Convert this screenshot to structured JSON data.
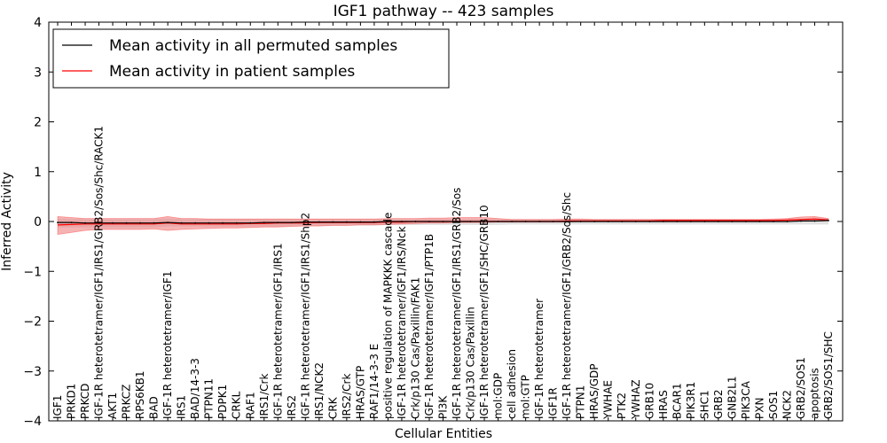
{
  "chart_data": {
    "type": "line",
    "title": "IGF1 pathway -- 423 samples",
    "xlabel": "Cellular Entities",
    "ylabel": "Inferred Activity",
    "ylim": [
      -4,
      4
    ],
    "yticks": [
      "−4",
      "−3",
      "−2",
      "−1",
      "0",
      "1",
      "2",
      "3",
      "4"
    ],
    "grid": false,
    "legend_position": "top-left",
    "colors": {
      "permuted": "#000000",
      "patient": "#ff0000",
      "patient_band": "#f08080",
      "permuted_band": "#c8c8c8"
    },
    "categories": [
      "IGF1",
      "PRKD1",
      "PRKCD",
      "IGF-1R heterotetramer/IGF1/IRS1/GRB2/Sos/Shc/RACK1",
      "AKT1",
      "PRKCZ",
      "RPS6KB1",
      "BAD",
      "IGF-1R heterotetramer/IGF1",
      "IRS1",
      "BAD/14-3-3",
      "PTPN11",
      "PDPK1",
      "CRKL",
      "RAF1",
      "IRS1/Crk",
      "IGF-1R heterotetramer/IGF1/IRS1",
      "IRS2",
      "IGF-1R heterotetramer/IGF1/IRS1/Shp2",
      "IRS1/NCK2",
      "CRK",
      "IRS2/Crk",
      "HRAS/GTP",
      "RAF1/14-3-3 E",
      "positive regulation of MAPKKK cascade",
      "IGF-1R heterotetramer/IGF1/IRS/Nck",
      "Crk/p130 Cas/Paxillin/FAK1",
      "IGF-1R heterotetramer/IGF1/PTP1B",
      "PI3K",
      "IGF-1R heterotetramer/IGF1/IRS1/GRB2/Sos",
      "Crk/p130 Cas/Paxillin",
      "IGF-1R heterotetramer/IGF1/SHC/GRB10",
      "mol:GDP",
      "cell adhesion",
      "mol:GTP",
      "IGF-1R heterotetramer",
      "IGF1R",
      "IGF-1R heterotetramer/IGF1/GRB2/Sos/Shc",
      "PTPN1",
      "HRAS/GDP",
      "YWHAE",
      "PTK2",
      "YWHAZ",
      "GRB10",
      "HRAS",
      "BCAR1",
      "PIK3R1",
      "SHC1",
      "GRB2",
      "GNB2L1",
      "PIK3CA",
      "PXN",
      "SOS1",
      "NCK2",
      "GRB2/SOS1",
      "apoptosis",
      "GRB2/SOS1/SHC"
    ],
    "series": [
      {
        "name": "Mean activity in all permuted samples",
        "values": [
          -0.02,
          -0.02,
          -0.03,
          -0.03,
          -0.03,
          -0.03,
          -0.03,
          -0.03,
          -0.02,
          -0.03,
          -0.03,
          -0.03,
          -0.03,
          -0.03,
          -0.03,
          -0.02,
          -0.02,
          -0.02,
          -0.01,
          -0.01,
          -0.01,
          -0.01,
          -0.01,
          -0.01,
          0,
          0,
          0,
          0,
          0,
          0,
          0,
          0,
          0,
          0,
          0,
          0,
          0,
          0,
          0,
          0,
          0,
          0,
          0,
          0,
          0,
          0,
          0,
          0,
          0,
          0,
          0,
          0,
          0,
          0,
          0.01,
          0.01,
          0.02
        ],
        "lower": [
          -0.12,
          -0.12,
          -0.12,
          -0.12,
          -0.12,
          -0.12,
          -0.12,
          -0.12,
          -0.1,
          -0.1,
          -0.1,
          -0.1,
          -0.1,
          -0.1,
          -0.1,
          -0.1,
          -0.1,
          -0.09,
          -0.09,
          -0.09,
          -0.08,
          -0.08,
          -0.08,
          -0.08,
          -0.07,
          -0.07,
          -0.07,
          -0.07,
          -0.07,
          -0.07,
          -0.07,
          -0.07,
          -0.07,
          -0.06,
          -0.06,
          -0.06,
          -0.06,
          -0.06,
          -0.06,
          -0.06,
          -0.06,
          -0.06,
          -0.06,
          -0.06,
          -0.06,
          -0.06,
          -0.06,
          -0.06,
          -0.06,
          -0.06,
          -0.06,
          -0.06,
          -0.06,
          -0.06,
          -0.06,
          -0.06,
          -0.06
        ],
        "upper": [
          0.06,
          0.05,
          0.05,
          0.05,
          0.05,
          0.05,
          0.05,
          0.05,
          0.06,
          0.05,
          0.05,
          0.05,
          0.05,
          0.05,
          0.05,
          0.05,
          0.05,
          0.05,
          0.05,
          0.05,
          0.05,
          0.05,
          0.05,
          0.05,
          0.05,
          0.05,
          0.05,
          0.05,
          0.05,
          0.05,
          0.05,
          0.05,
          0.05,
          0.05,
          0.05,
          0.05,
          0.05,
          0.05,
          0.05,
          0.05,
          0.05,
          0.05,
          0.05,
          0.05,
          0.05,
          0.05,
          0.05,
          0.05,
          0.05,
          0.05,
          0.05,
          0.05,
          0.05,
          0.05,
          0.06,
          0.08,
          0.06
        ]
      },
      {
        "name": "Mean activity in patient samples",
        "values": [
          -0.07,
          -0.06,
          -0.05,
          -0.05,
          -0.05,
          -0.05,
          -0.05,
          -0.05,
          -0.03,
          -0.05,
          -0.05,
          -0.05,
          -0.05,
          -0.05,
          -0.04,
          -0.04,
          -0.03,
          -0.03,
          -0.03,
          -0.02,
          -0.02,
          -0.02,
          -0.02,
          -0.02,
          -0.01,
          -0.01,
          0,
          0,
          0,
          0,
          0,
          0,
          0,
          0,
          0,
          0,
          0,
          0.01,
          0.01,
          0.01,
          0.01,
          0.01,
          0.01,
          0.01,
          0.02,
          0.02,
          0.02,
          0.02,
          0.02,
          0.02,
          0.02,
          0.02,
          0.02,
          0.03,
          0.04,
          0.05,
          0.03
        ],
        "lower": [
          -0.26,
          -0.22,
          -0.18,
          -0.16,
          -0.16,
          -0.16,
          -0.16,
          -0.15,
          -0.18,
          -0.16,
          -0.15,
          -0.14,
          -0.13,
          -0.13,
          -0.12,
          -0.11,
          -0.11,
          -0.1,
          -0.09,
          -0.09,
          -0.08,
          -0.08,
          -0.07,
          -0.07,
          -0.06,
          -0.05,
          -0.04,
          -0.03,
          -0.03,
          -0.02,
          -0.02,
          -0.02,
          -0.01,
          -0.01,
          -0.01,
          -0.01,
          -0.01,
          -0.01,
          0,
          0,
          0,
          0,
          0,
          0,
          0,
          0,
          0,
          0,
          0,
          0,
          0,
          0,
          0,
          0.01,
          0.02,
          0.03,
          0.02
        ],
        "upper": [
          0.1,
          0.08,
          0.06,
          0.06,
          0.06,
          0.06,
          0.06,
          0.06,
          0.1,
          0.06,
          0.06,
          0.05,
          0.05,
          0.05,
          0.05,
          0.05,
          0.05,
          0.05,
          0.05,
          0.05,
          0.05,
          0.05,
          0.05,
          0.05,
          0.06,
          0.06,
          0.06,
          0.07,
          0.07,
          0.08,
          0.08,
          0.08,
          0.06,
          0.04,
          0.04,
          0.04,
          0.04,
          0.05,
          0.05,
          0.04,
          0.04,
          0.04,
          0.04,
          0.04,
          0.04,
          0.04,
          0.04,
          0.04,
          0.04,
          0.04,
          0.04,
          0.04,
          0.05,
          0.06,
          0.09,
          0.1,
          0.06
        ]
      }
    ]
  }
}
